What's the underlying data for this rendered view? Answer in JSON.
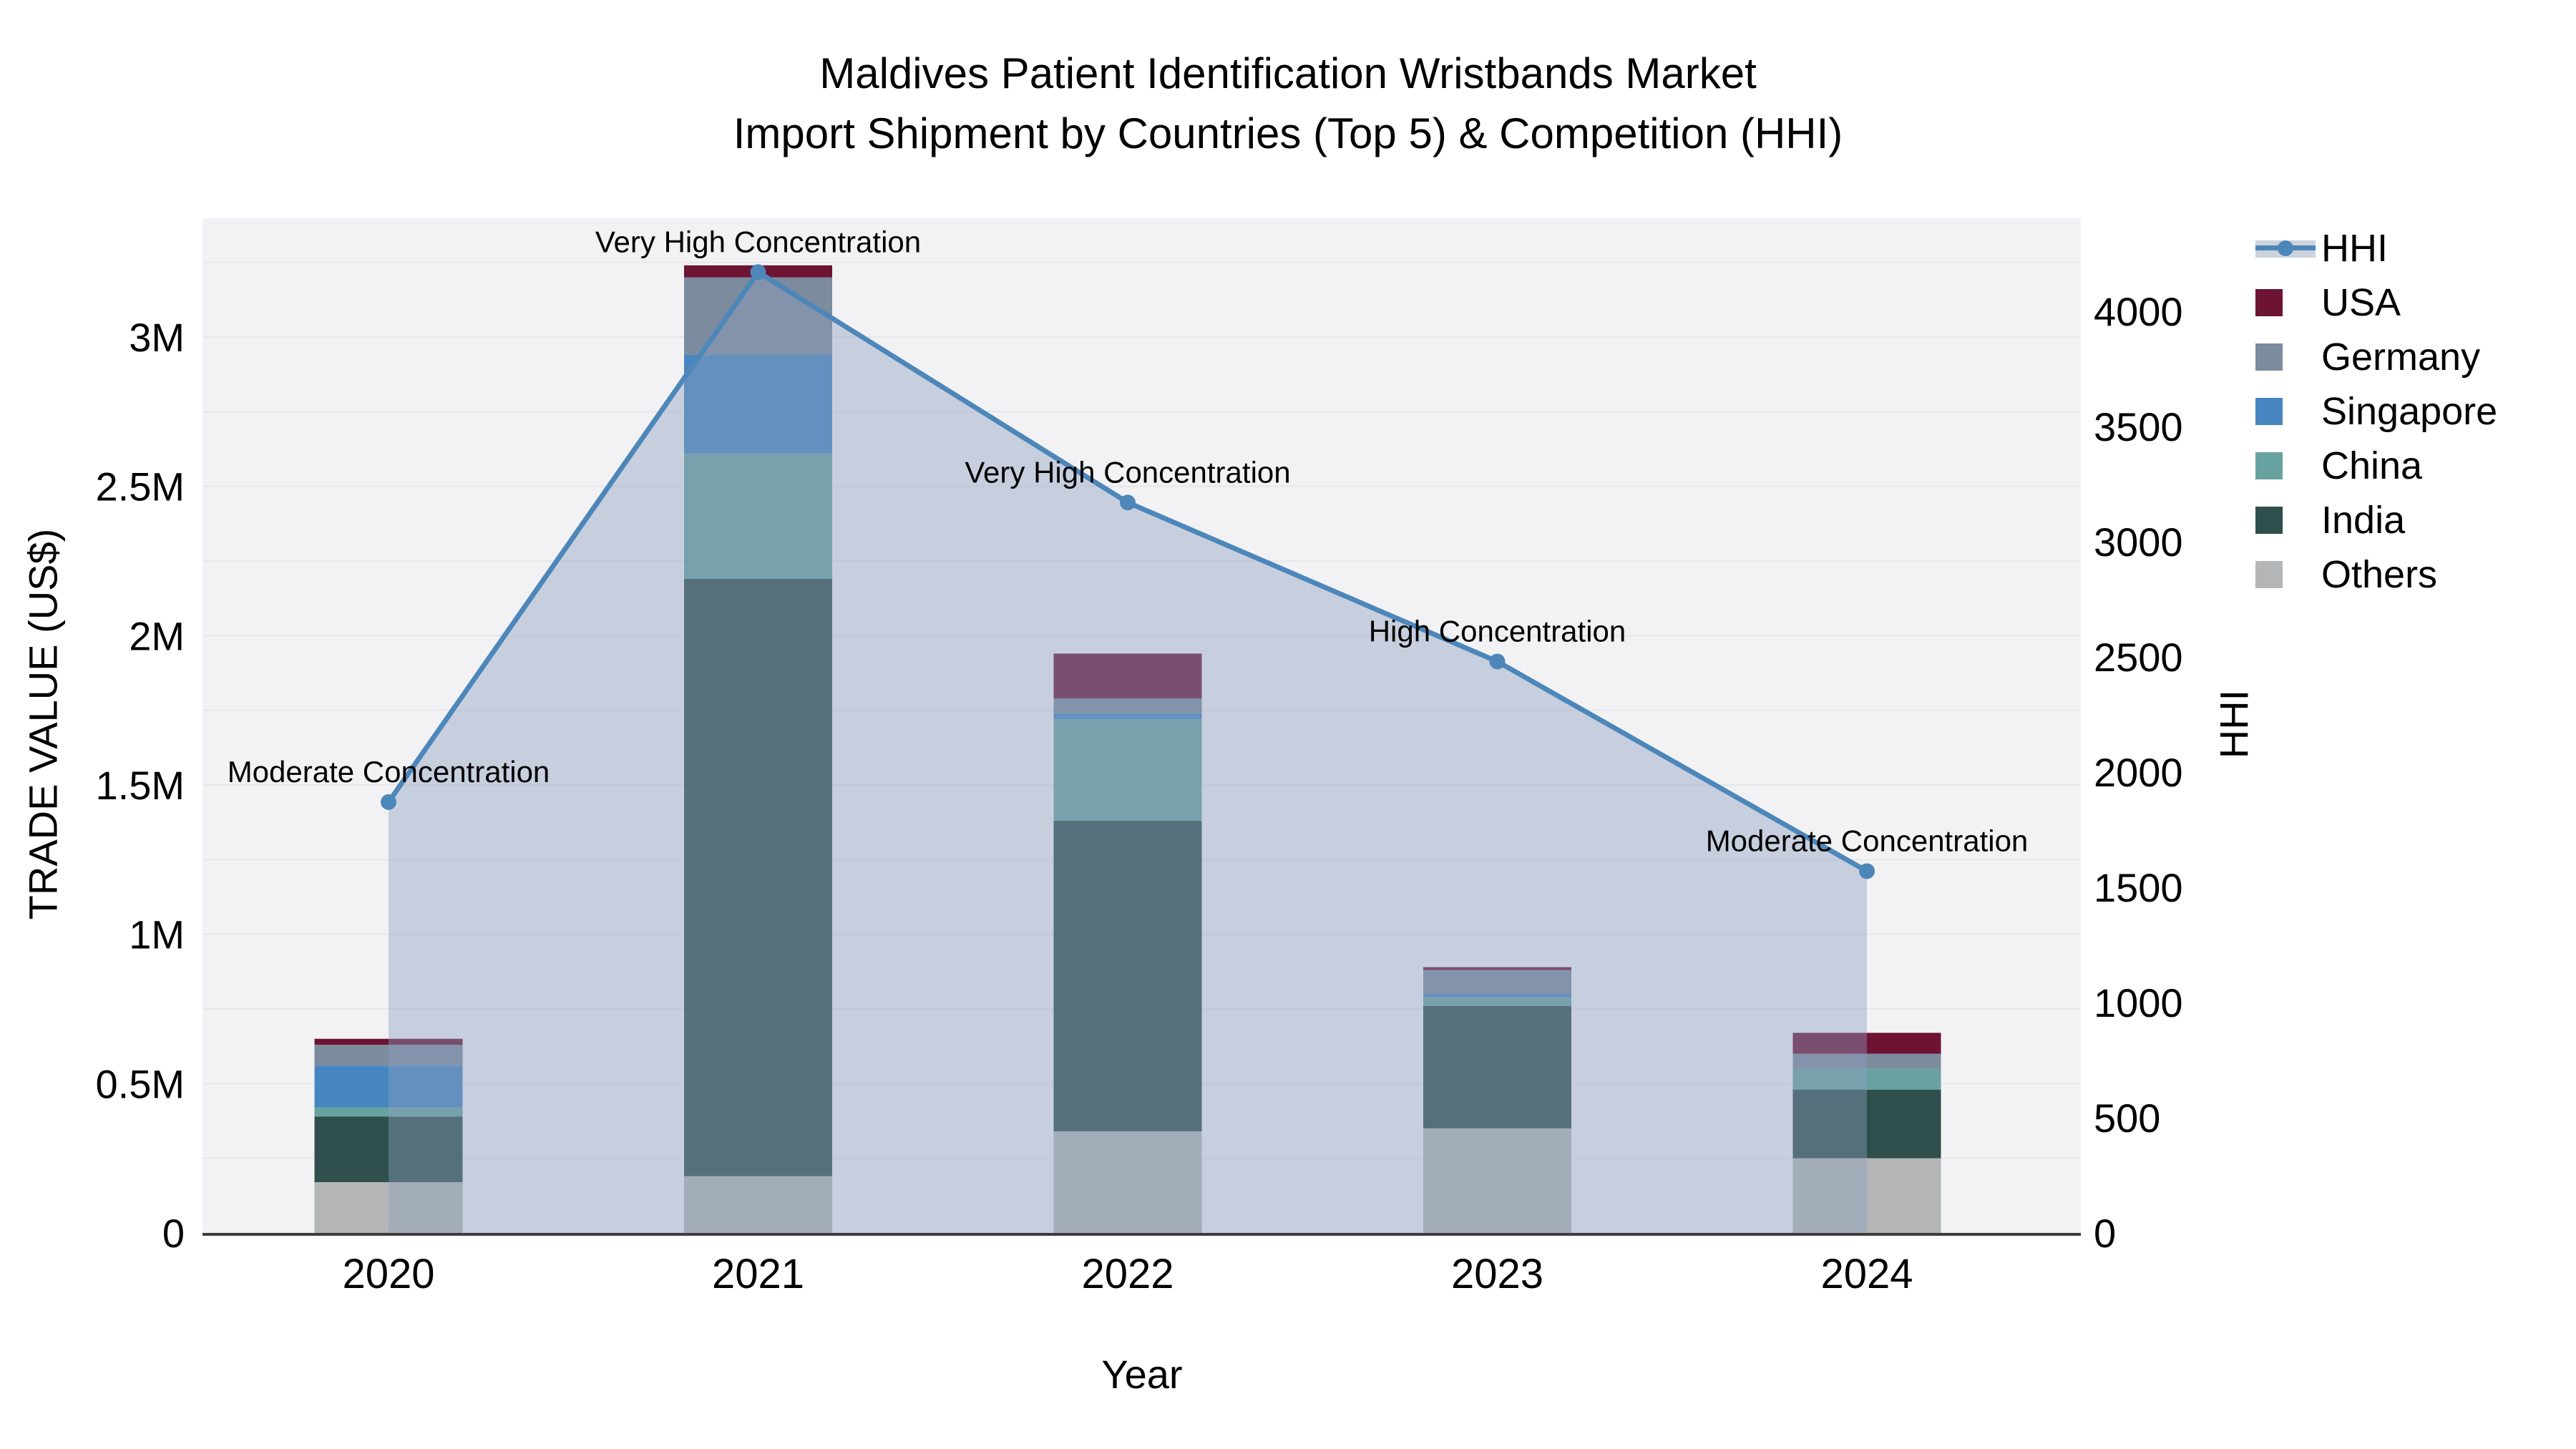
{
  "title": {
    "line1": "Maldives Patient Identification Wristbands Market",
    "line2": "Import Shipment by Countries (Top 5) & Competition (HHI)"
  },
  "axes": {
    "left": {
      "title": "TRADE VALUE (US$)",
      "ticks": [
        {
          "label": "0",
          "value": 0
        },
        {
          "label": "0.5M",
          "value": 0.5
        },
        {
          "label": "1M",
          "value": 1
        },
        {
          "label": "1.5M",
          "value": 1.5
        },
        {
          "label": "2M",
          "value": 2
        },
        {
          "label": "2.5M",
          "value": 2.5
        },
        {
          "label": "3M",
          "value": 3
        }
      ]
    },
    "right": {
      "title": "HHI",
      "ticks": [
        {
          "label": "0",
          "value": 0
        },
        {
          "label": "500",
          "value": 500
        },
        {
          "label": "1000",
          "value": 1000
        },
        {
          "label": "1500",
          "value": 1500
        },
        {
          "label": "2000",
          "value": 2000
        },
        {
          "label": "2500",
          "value": 2500
        },
        {
          "label": "3000",
          "value": 3000
        },
        {
          "label": "3500",
          "value": 3500
        },
        {
          "label": "4000",
          "value": 4000
        }
      ]
    },
    "x": {
      "title": "Year"
    }
  },
  "legend": {
    "items": [
      {
        "label": "HHI",
        "color": "#4d87ba",
        "type": "line",
        "band_color": "#ccd3dd"
      },
      {
        "label": "USA",
        "color": "#6d1334",
        "type": "bar"
      },
      {
        "label": "Germany",
        "color": "#7c8b9e",
        "type": "bar"
      },
      {
        "label": "Singapore",
        "color": "#4886c1",
        "type": "bar"
      },
      {
        "label": "China",
        "color": "#68a2a0",
        "type": "bar"
      },
      {
        "label": "India",
        "color": "#2e4f4b",
        "type": "bar"
      },
      {
        "label": "Others",
        "color": "#b4b5b6",
        "type": "bar"
      }
    ]
  },
  "chart_data": {
    "type": "bar+line",
    "title": "Maldives Patient Identification Wristbands Market Import Shipment by Countries (Top 5) & Competition (HHI)",
    "categories": [
      "2020",
      "2021",
      "2022",
      "2023",
      "2024"
    ],
    "xlabel": "Year",
    "ylabel_left": "TRADE VALUE (US$)",
    "ylabel_right": "HHI",
    "bar_unit": "million US$",
    "stack_order": "bottom to top",
    "series": [
      {
        "name": "Others",
        "color": "#b4b5b6",
        "values": [
          0.17,
          0.19,
          0.34,
          0.35,
          0.25
        ]
      },
      {
        "name": "India",
        "color": "#2e4f4b",
        "values": [
          0.22,
          2.0,
          1.04,
          0.41,
          0.23
        ]
      },
      {
        "name": "China",
        "color": "#68a2a0",
        "values": [
          0.03,
          0.42,
          0.34,
          0.03,
          0.07
        ]
      },
      {
        "name": "Singapore",
        "color": "#4886c1",
        "values": [
          0.14,
          0.33,
          0.02,
          0.01,
          0
        ]
      },
      {
        "name": "Germany",
        "color": "#7c8b9e",
        "values": [
          0.07,
          0.26,
          0.05,
          0.08,
          0.05
        ]
      },
      {
        "name": "USA",
        "color": "#6d1334",
        "values": [
          0.02,
          0.04,
          0.15,
          0.01,
          0.07
        ]
      }
    ],
    "line": {
      "name": "HHI",
      "color": "#4d87ba",
      "fill_color": "rgba(140,160,190,0.42)",
      "values": [
        1870,
        4170,
        3170,
        2480,
        1570
      ],
      "annotations": [
        "Moderate Concentration",
        "Very High Concentration",
        "Very High Concentration",
        "High Concentration",
        "Moderate Concentration"
      ]
    },
    "ylim_left": [
      0,
      3.4
    ],
    "ylim_right": [
      0,
      4400
    ],
    "grid": true,
    "plot_bg": "#f2f2f4",
    "grid_color": "#e7e7ea",
    "axis_line_color": "#3d3d3d",
    "legend_position": "right"
  }
}
